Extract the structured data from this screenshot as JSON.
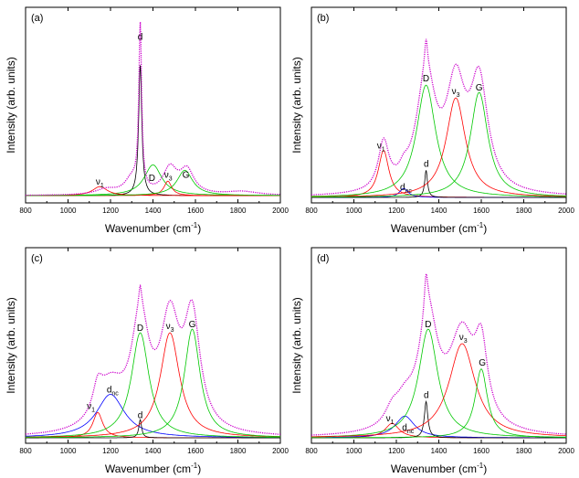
{
  "chart_data": [
    {
      "type": "line",
      "panel_label": "(a)",
      "xlabel": "Wavenumber (cm",
      "xlabel_sup": "-1",
      "xlabel_end": ")",
      "ylabel": "Intensity (arb. units)",
      "xlim": [
        800,
        2000
      ],
      "ylim": [
        0,
        1.08
      ],
      "xticks": [
        "800",
        "1000",
        "1200",
        "1400",
        "1600",
        "1800",
        "2000"
      ],
      "xtick_values": [
        800,
        1000,
        1200,
        1400,
        1600,
        1800,
        2000
      ],
      "baseline": 0.04,
      "series": [
        {
          "name": "d",
          "color": "#000000",
          "peaks": [
            [
              1340,
              0.72,
              9
            ]
          ],
          "label": "d",
          "label_x": 1340,
          "label_y": 0.9
        },
        {
          "name": "D",
          "color": "#00c800",
          "peaks": [
            [
              1400,
              0.17,
              50
            ]
          ],
          "label": "D",
          "label_x": 1395,
          "label_y": 0.12
        },
        {
          "name": "ν1",
          "color": "#ff0000",
          "peaks": [
            [
              1150,
              0.05,
              42
            ]
          ],
          "label": "ν",
          "label_sub": "1",
          "label_x": 1150,
          "label_y": 0.1
        },
        {
          "name": "ν3",
          "color": "#ff0000",
          "peaks": [
            [
              1470,
              0.08,
              22
            ]
          ],
          "label": "ν",
          "label_sub": "3",
          "label_x": 1472,
          "label_y": 0.14
        },
        {
          "name": "G",
          "color": "#00c800",
          "peaks": [
            [
              1550,
              0.14,
              45
            ]
          ],
          "label": "G",
          "label_x": 1555,
          "label_y": 0.14
        },
        {
          "name": "spectrum",
          "color": "#cc00cc",
          "dotted": true,
          "peaks": [
            [
              1340,
              0.9,
              8
            ],
            [
              1300,
              0.08,
              40
            ],
            [
              1480,
              0.14,
              40
            ],
            [
              1560,
              0.13,
              40
            ],
            [
              1180,
              0.03,
              60
            ],
            [
              1820,
              0.02,
              90
            ]
          ]
        }
      ]
    },
    {
      "type": "line",
      "panel_label": "(b)",
      "xlabel": "Wavenumber (cm",
      "xlabel_sup": "-1",
      "xlabel_end": ")",
      "ylabel": "Intensity (arb. units)",
      "xlim": [
        800,
        2000
      ],
      "ylim": [
        0,
        1.08
      ],
      "xticks": [
        "800",
        "1000",
        "1200",
        "1400",
        "1600",
        "1800",
        "2000"
      ],
      "xtick_values": [
        800,
        1000,
        1200,
        1400,
        1600,
        1800,
        2000
      ],
      "baseline": 0.03,
      "series": [
        {
          "name": "ν1",
          "color": "#ff0000",
          "peaks": [
            [
              1140,
              0.26,
              30
            ]
          ],
          "label": "ν",
          "label_sub": "1",
          "label_x": 1128,
          "label_y": 0.3
        },
        {
          "name": "d_nc",
          "color": "#0000ff",
          "peaks": [
            [
              1235,
              0.05,
              25
            ]
          ],
          "label": "d",
          "label_sub": "nc",
          "label_x": 1245,
          "label_y": 0.07
        },
        {
          "name": "d",
          "color": "#000000",
          "peaks": [
            [
              1340,
              0.15,
              8
            ]
          ],
          "label": "d",
          "label_x": 1341,
          "label_y": 0.2
        },
        {
          "name": "D",
          "color": "#00c800",
          "peaks": [
            [
              1340,
              0.62,
              55
            ]
          ],
          "label": "D",
          "label_x": 1340,
          "label_y": 0.67
        },
        {
          "name": "ν3",
          "color": "#ff0000",
          "peaks": [
            [
              1480,
              0.55,
              55
            ]
          ],
          "label": "ν",
          "label_sub": "3",
          "label_x": 1480,
          "label_y": 0.6
        },
        {
          "name": "G",
          "color": "#00c800",
          "peaks": [
            [
              1590,
              0.58,
              50
            ]
          ],
          "label": "G",
          "label_x": 1590,
          "label_y": 0.62
        },
        {
          "name": "spectrum",
          "color": "#cc00cc",
          "dotted": true,
          "peaks": [
            [
              1140,
              0.26,
              30
            ],
            [
              1235,
              0.05,
              25
            ],
            [
              1340,
              0.62,
              55
            ],
            [
              1480,
              0.55,
              55
            ],
            [
              1590,
              0.58,
              50
            ],
            [
              1340,
              0.15,
              8
            ]
          ]
        }
      ]
    },
    {
      "type": "line",
      "panel_label": "(c)",
      "xlabel": "Wavenumber (cm",
      "xlabel_sup": "-1",
      "xlabel_end": ")",
      "ylabel": "Intensity (arb. units)",
      "xlim": [
        800,
        2000
      ],
      "ylim": [
        0,
        1.08
      ],
      "xticks": [
        "800",
        "1000",
        "1200",
        "1400",
        "1600",
        "1800",
        "2000"
      ],
      "xtick_values": [
        800,
        1000,
        1200,
        1400,
        1600,
        1800,
        2000
      ],
      "baseline": 0.03,
      "series": [
        {
          "name": "ν1",
          "color": "#ff0000",
          "peaks": [
            [
              1140,
              0.14,
              28
            ]
          ],
          "label": "ν",
          "label_sub": "1",
          "label_x": 1108,
          "label_y": 0.19
        },
        {
          "name": "d_nc",
          "color": "#0000ff",
          "peaks": [
            [
              1200,
              0.24,
              80
            ]
          ],
          "label": "d",
          "label_sub": "nc",
          "label_x": 1210,
          "label_y": 0.28
        },
        {
          "name": "d",
          "color": "#000000",
          "peaks": [
            [
              1340,
              0.1,
              8
            ]
          ],
          "label": "d",
          "label_x": 1340,
          "label_y": 0.14
        },
        {
          "name": "D",
          "color": "#00c800",
          "peaks": [
            [
              1340,
              0.58,
              50
            ]
          ],
          "label": "D",
          "label_x": 1340,
          "label_y": 0.62
        },
        {
          "name": "ν3",
          "color": "#ff0000",
          "peaks": [
            [
              1480,
              0.58,
              55
            ]
          ],
          "label": "ν",
          "label_sub": "3",
          "label_x": 1480,
          "label_y": 0.63
        },
        {
          "name": "G",
          "color": "#00c800",
          "peaks": [
            [
              1585,
              0.6,
              45
            ]
          ],
          "label": "G",
          "label_x": 1585,
          "label_y": 0.64
        },
        {
          "name": "spectrum",
          "color": "#cc00cc",
          "dotted": true,
          "peaks": [
            [
              1140,
              0.14,
              28
            ],
            [
              1200,
              0.24,
              80
            ],
            [
              1340,
              0.58,
              50
            ],
            [
              1480,
              0.58,
              55
            ],
            [
              1585,
              0.6,
              45
            ],
            [
              1340,
              0.1,
              8
            ]
          ]
        }
      ]
    },
    {
      "type": "line",
      "panel_label": "(d)",
      "xlabel": "Wavenumber (cm",
      "xlabel_sup": "-1",
      "xlabel_end": ")",
      "ylabel": "Intensity (arb. units)",
      "xlim": [
        800,
        2000
      ],
      "ylim": [
        0,
        1.08
      ],
      "xticks": [
        "800",
        "1000",
        "1200",
        "1400",
        "1600",
        "1800",
        "2000"
      ],
      "xtick_values": [
        800,
        1000,
        1200,
        1400,
        1600,
        1800,
        2000
      ],
      "baseline": 0.03,
      "series": [
        {
          "name": "ν1",
          "color": "#ff0000",
          "peaks": [
            [
              1180,
              0.08,
              40
            ]
          ],
          "label": "ν",
          "label_sub": "1",
          "label_x": 1170,
          "label_y": 0.12
        },
        {
          "name": "d_nc",
          "color": "#0000ff",
          "peaks": [
            [
              1240,
              0.12,
              55
            ]
          ],
          "label": "d",
          "label_sub": "nc",
          "label_x": 1255,
          "label_y": 0.07
        },
        {
          "name": "d",
          "color": "#000000",
          "peaks": [
            [
              1340,
              0.2,
              10
            ]
          ],
          "label": "d",
          "label_x": 1341,
          "label_y": 0.25
        },
        {
          "name": "D",
          "color": "#00c800",
          "peaks": [
            [
              1350,
              0.6,
              55
            ]
          ],
          "label": "D",
          "label_x": 1350,
          "label_y": 0.64
        },
        {
          "name": "ν3",
          "color": "#ff0000",
          "peaks": [
            [
              1510,
              0.52,
              75
            ]
          ],
          "label": "ν",
          "label_sub": "3",
          "label_x": 1515,
          "label_y": 0.57
        },
        {
          "name": "G",
          "color": "#00c800",
          "peaks": [
            [
              1600,
              0.38,
              35
            ]
          ],
          "label": "G",
          "label_x": 1605,
          "label_y": 0.43
        },
        {
          "name": "spectrum",
          "color": "#cc00cc",
          "dotted": true,
          "peaks": [
            [
              1180,
              0.08,
              40
            ],
            [
              1240,
              0.12,
              55
            ],
            [
              1350,
              0.6,
              55
            ],
            [
              1510,
              0.52,
              75
            ],
            [
              1600,
              0.38,
              35
            ],
            [
              1340,
              0.2,
              10
            ]
          ]
        }
      ]
    }
  ]
}
